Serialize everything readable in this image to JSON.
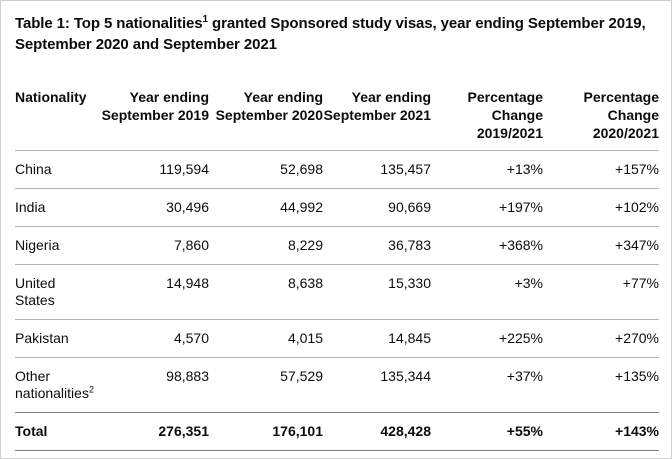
{
  "title": {
    "prefix": "Table 1: Top 5 nationalities",
    "footnote_marker": "1",
    "suffix": " granted Sponsored study visas, year ending September 2019, September 2020 and September 2021"
  },
  "table": {
    "columns": [
      {
        "lines": [
          "Nationality"
        ]
      },
      {
        "lines": [
          "Year ending",
          "September 2019"
        ]
      },
      {
        "lines": [
          "Year ending",
          "September 2020"
        ]
      },
      {
        "lines": [
          "Year ending",
          "September 2021"
        ]
      },
      {
        "lines": [
          "Percentage",
          "Change",
          "2019/2021"
        ]
      },
      {
        "lines": [
          "Percentage",
          "Change",
          "2020/2021"
        ]
      }
    ],
    "rows": [
      {
        "nationality": "China",
        "sup": "",
        "ye2019": "119,594",
        "ye2020": "52,698",
        "ye2021": "135,457",
        "pc1921": "+13%",
        "pc2021": "+157%"
      },
      {
        "nationality": "India",
        "sup": "",
        "ye2019": "30,496",
        "ye2020": "44,992",
        "ye2021": "90,669",
        "pc1921": "+197%",
        "pc2021": "+102%"
      },
      {
        "nationality": "Nigeria",
        "sup": "",
        "ye2019": "7,860",
        "ye2020": "8,229",
        "ye2021": "36,783",
        "pc1921": "+368%",
        "pc2021": "+347%"
      },
      {
        "nationality": "United States",
        "sup": "",
        "ye2019": "14,948",
        "ye2020": "8,638",
        "ye2021": "15,330",
        "pc1921": "+3%",
        "pc2021": "+77%"
      },
      {
        "nationality": "Pakistan",
        "sup": "",
        "ye2019": "4,570",
        "ye2020": "4,015",
        "ye2021": "14,845",
        "pc1921": "+225%",
        "pc2021": "+270%"
      },
      {
        "nationality": "Other nationalities",
        "sup": "2",
        "ye2019": "98,883",
        "ye2020": "57,529",
        "ye2021": "135,344",
        "pc1921": "+37%",
        "pc2021": "+135%"
      }
    ],
    "total": {
      "nationality": "Total",
      "ye2019": "276,351",
      "ye2020": "176,101",
      "ye2021": "428,428",
      "pc1921": "+55%",
      "pc2021": "+143%"
    }
  },
  "colors": {
    "text": "#0b0c0c",
    "background": "#ffffff",
    "frame": "#cfd0d2",
    "border_light": "#b1b4b6",
    "border_dark": "#7f7f7f"
  }
}
